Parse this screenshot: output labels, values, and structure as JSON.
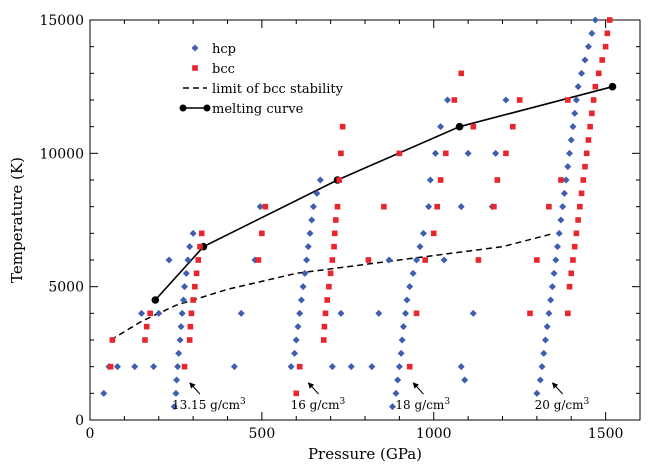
{
  "chart_data": {
    "type": "scatter",
    "xlabel": "Pressure (GPa)",
    "ylabel": "Temperature (K)",
    "xlim": [
      0,
      1600
    ],
    "ylim": [
      0,
      15000
    ],
    "xticks": [
      0,
      500,
      1000,
      1500
    ],
    "yticks": [
      0,
      5000,
      10000,
      15000
    ],
    "grid": false,
    "legend_position": "top-left",
    "series": [
      {
        "name": "hcp",
        "marker": "diamond",
        "color": "#3f5fae",
        "points": [
          [
            40,
            1000
          ],
          [
            55,
            2000
          ],
          [
            80,
            2000
          ],
          [
            130,
            2000
          ],
          [
            185,
            2000
          ],
          [
            150,
            4000
          ],
          [
            200,
            4000
          ],
          [
            245,
            500
          ],
          [
            250,
            1000
          ],
          [
            252,
            1500
          ],
          [
            255,
            2000
          ],
          [
            258,
            2500
          ],
          [
            262,
            3000
          ],
          [
            265,
            3500
          ],
          [
            268,
            4000
          ],
          [
            272,
            4500
          ],
          [
            275,
            5000
          ],
          [
            280,
            5500
          ],
          [
            285,
            6000
          ],
          [
            290,
            6500
          ],
          [
            300,
            7000
          ],
          [
            230,
            6000
          ],
          [
            420,
            2000
          ],
          [
            440,
            4000
          ],
          [
            480,
            6000
          ],
          [
            495,
            8000
          ],
          [
            585,
            2000
          ],
          [
            595,
            2500
          ],
          [
            600,
            3000
          ],
          [
            605,
            3500
          ],
          [
            610,
            4000
          ],
          [
            615,
            4500
          ],
          [
            620,
            5000
          ],
          [
            625,
            5500
          ],
          [
            630,
            6000
          ],
          [
            635,
            6500
          ],
          [
            640,
            7000
          ],
          [
            645,
            7500
          ],
          [
            650,
            8000
          ],
          [
            660,
            8500
          ],
          [
            670,
            9000
          ],
          [
            705,
            2000
          ],
          [
            730,
            4000
          ],
          [
            760,
            2000
          ],
          [
            820,
            2000
          ],
          [
            840,
            4000
          ],
          [
            870,
            6000
          ],
          [
            880,
            500
          ],
          [
            890,
            1000
          ],
          [
            895,
            1500
          ],
          [
            900,
            2000
          ],
          [
            905,
            2500
          ],
          [
            908,
            3000
          ],
          [
            912,
            3500
          ],
          [
            918,
            4000
          ],
          [
            922,
            4500
          ],
          [
            930,
            5000
          ],
          [
            940,
            5500
          ],
          [
            950,
            6000
          ],
          [
            960,
            6500
          ],
          [
            970,
            7000
          ],
          [
            985,
            8000
          ],
          [
            990,
            9000
          ],
          [
            1005,
            10000
          ],
          [
            1020,
            11000
          ],
          [
            1040,
            12000
          ],
          [
            1030,
            6000
          ],
          [
            1080,
            8000
          ],
          [
            1080,
            2000
          ],
          [
            1090,
            1500
          ],
          [
            1100,
            10000
          ],
          [
            1115,
            4000
          ],
          [
            1170,
            8000
          ],
          [
            1180,
            10000
          ],
          [
            1210,
            12000
          ],
          [
            1300,
            1000
          ],
          [
            1310,
            1500
          ],
          [
            1315,
            2000
          ],
          [
            1320,
            2500
          ],
          [
            1325,
            3000
          ],
          [
            1330,
            3500
          ],
          [
            1335,
            4000
          ],
          [
            1340,
            4500
          ],
          [
            1345,
            5000
          ],
          [
            1350,
            5500
          ],
          [
            1355,
            6000
          ],
          [
            1360,
            6500
          ],
          [
            1365,
            7000
          ],
          [
            1370,
            7500
          ],
          [
            1375,
            8000
          ],
          [
            1380,
            8500
          ],
          [
            1385,
            9000
          ],
          [
            1390,
            9500
          ],
          [
            1395,
            10000
          ],
          [
            1400,
            10500
          ],
          [
            1405,
            11000
          ],
          [
            1410,
            11500
          ],
          [
            1415,
            12000
          ],
          [
            1420,
            12500
          ],
          [
            1430,
            13000
          ],
          [
            1440,
            13500
          ],
          [
            1450,
            14000
          ],
          [
            1460,
            14500
          ],
          [
            1470,
            15000
          ]
        ]
      },
      {
        "name": "bcc",
        "marker": "square",
        "color": "#e8262b",
        "points": [
          [
            65,
            3000
          ],
          [
            60,
            2000
          ],
          [
            160,
            3000
          ],
          [
            165,
            3500
          ],
          [
            175,
            4000
          ],
          [
            275,
            2000
          ],
          [
            290,
            3000
          ],
          [
            292,
            3500
          ],
          [
            295,
            4000
          ],
          [
            300,
            4500
          ],
          [
            305,
            5000
          ],
          [
            310,
            5500
          ],
          [
            315,
            6000
          ],
          [
            320,
            6500
          ],
          [
            325,
            7000
          ],
          [
            490,
            6000
          ],
          [
            500,
            7000
          ],
          [
            510,
            8000
          ],
          [
            600,
            1000
          ],
          [
            610,
            2000
          ],
          [
            680,
            3000
          ],
          [
            682,
            3500
          ],
          [
            685,
            4000
          ],
          [
            690,
            4500
          ],
          [
            695,
            5000
          ],
          [
            700,
            5500
          ],
          [
            705,
            6000
          ],
          [
            710,
            6500
          ],
          [
            712,
            7000
          ],
          [
            715,
            7500
          ],
          [
            720,
            8000
          ],
          [
            725,
            9000
          ],
          [
            730,
            10000
          ],
          [
            735,
            11000
          ],
          [
            810,
            6000
          ],
          [
            855,
            8000
          ],
          [
            900,
            10000
          ],
          [
            930,
            2000
          ],
          [
            950,
            4000
          ],
          [
            975,
            6000
          ],
          [
            1000,
            7000
          ],
          [
            1010,
            8000
          ],
          [
            1020,
            9000
          ],
          [
            1035,
            10000
          ],
          [
            1060,
            12000
          ],
          [
            1080,
            13000
          ],
          [
            1115,
            11000
          ],
          [
            1130,
            6000
          ],
          [
            1175,
            8000
          ],
          [
            1185,
            9000
          ],
          [
            1210,
            10000
          ],
          [
            1230,
            11000
          ],
          [
            1250,
            12000
          ],
          [
            1280,
            4000
          ],
          [
            1300,
            6000
          ],
          [
            1335,
            8000
          ],
          [
            1370,
            9000
          ],
          [
            1390,
            4000
          ],
          [
            1395,
            5000
          ],
          [
            1400,
            5500
          ],
          [
            1405,
            6000
          ],
          [
            1410,
            6500
          ],
          [
            1415,
            7000
          ],
          [
            1420,
            7500
          ],
          [
            1425,
            8000
          ],
          [
            1430,
            8500
          ],
          [
            1435,
            9000
          ],
          [
            1440,
            9500
          ],
          [
            1445,
            10000
          ],
          [
            1450,
            10500
          ],
          [
            1455,
            11000
          ],
          [
            1460,
            11500
          ],
          [
            1465,
            12000
          ],
          [
            1470,
            12500
          ],
          [
            1480,
            13000
          ],
          [
            1490,
            13500
          ],
          [
            1500,
            14000
          ],
          [
            1505,
            14500
          ],
          [
            1512,
            15000
          ],
          [
            1390,
            12000
          ]
        ]
      },
      {
        "name": "limit of bcc stability",
        "style": "dashed",
        "color": "#000000",
        "points": [
          [
            60,
            3000
          ],
          [
            150,
            3700
          ],
          [
            250,
            4300
          ],
          [
            400,
            4900
          ],
          [
            600,
            5500
          ],
          [
            900,
            6000
          ],
          [
            1200,
            6500
          ],
          [
            1350,
            7000
          ]
        ]
      },
      {
        "name": "melting curve",
        "style": "solid-with-markers",
        "color": "#000000",
        "points": [
          [
            190,
            4500
          ],
          [
            330,
            6500
          ],
          [
            720,
            9000
          ],
          [
            1075,
            11000
          ],
          [
            1520,
            12500
          ]
        ]
      }
    ],
    "annotations": [
      {
        "text": "13.15 g/cm",
        "sup": "3",
        "points_to": [
          285,
          1500
        ]
      },
      {
        "text": "16 g/cm",
        "sup": "3",
        "points_to": [
          630,
          1500
        ]
      },
      {
        "text": "18 g/cm",
        "sup": "3",
        "points_to": [
          935,
          1500
        ]
      },
      {
        "text": "20 g/cm",
        "sup": "3",
        "points_to": [
          1340,
          1500
        ]
      }
    ]
  }
}
